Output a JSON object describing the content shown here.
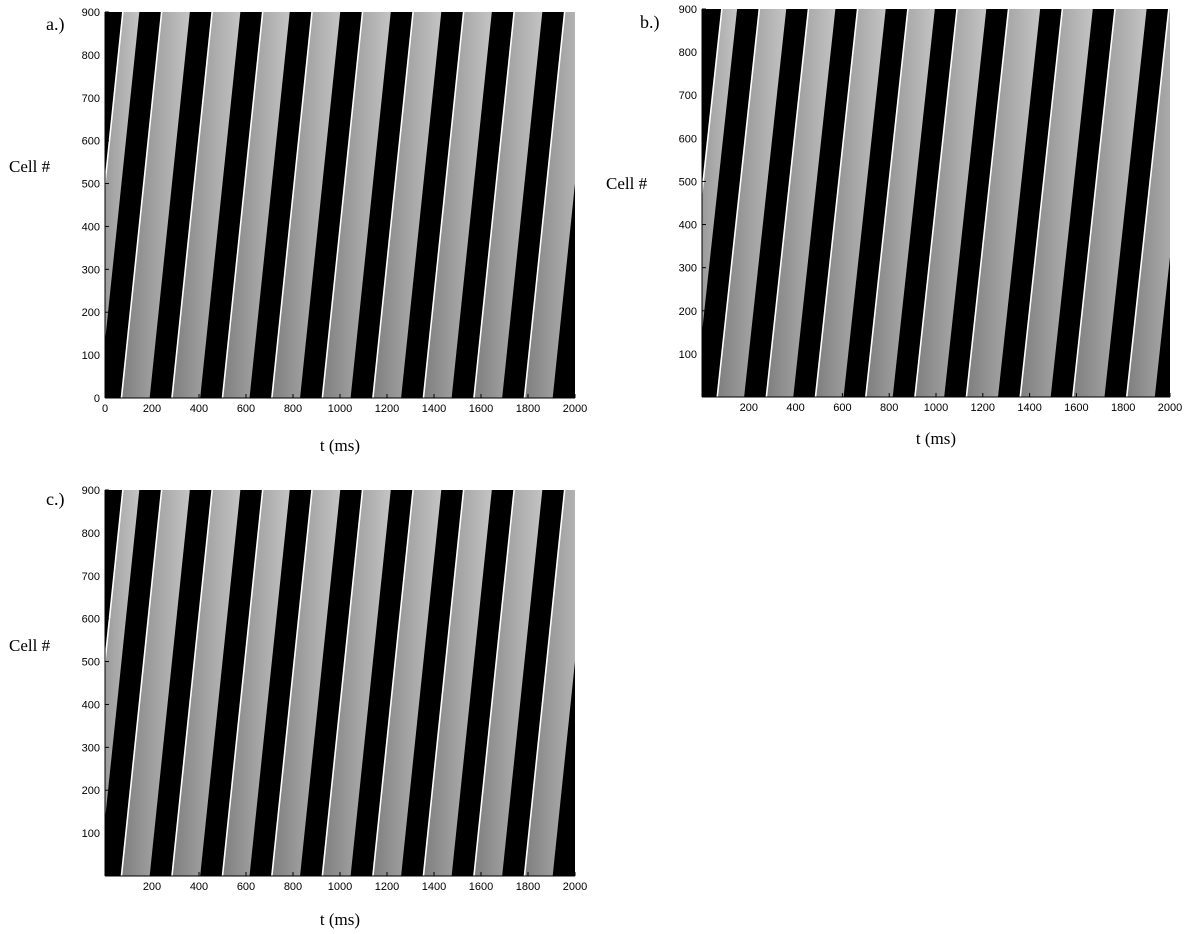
{
  "colors": {
    "background": "#ffffff",
    "band_dark": "#000000",
    "band_gray_leading": "#7e7e7e",
    "band_gray_trailing": "#c4c4c4",
    "front_edge": "#ffffff"
  },
  "chart_data": [
    {
      "id": "a",
      "panel_label": "a.)",
      "type": "heatmap",
      "xlabel": "t (ms)",
      "ylabel": "Cell #",
      "xlim": [
        0,
        2000
      ],
      "ylim": [
        0,
        900
      ],
      "x_ticks": [
        "0",
        "200",
        "400",
        "600",
        "800",
        "1000",
        "1200",
        "1400",
        "1600",
        "1800",
        "2000"
      ],
      "y_ticks": [
        "0",
        "100",
        "200",
        "300",
        "400",
        "500",
        "600",
        "700",
        "800",
        "900"
      ],
      "wave_front_t_at_cell_0": [
        -95,
        70,
        285,
        500,
        710,
        925,
        1140,
        1355,
        1570,
        1785
      ],
      "front_delay_per_cell_ms": 0.19,
      "dark_band_duration_ms": 95
    },
    {
      "id": "b",
      "panel_label": "b.)",
      "type": "heatmap",
      "xlabel": "t (ms)",
      "ylabel": "Cell #",
      "xlim": [
        0,
        2000
      ],
      "ylim": [
        0,
        900
      ],
      "x_ticks": [
        "200",
        "400",
        "600",
        "800",
        "1000",
        "1200",
        "1400",
        "1600",
        "1800",
        "2000"
      ],
      "y_ticks": [
        "100",
        "200",
        "300",
        "400",
        "500",
        "600",
        "700",
        "800",
        "900"
      ],
      "wave_front_t_at_cell_0": [
        -95,
        65,
        275,
        485,
        700,
        910,
        1130,
        1360,
        1585,
        1815
      ],
      "front_delay_per_cell_ms": 0.2,
      "dark_band_duration_ms": 95
    },
    {
      "id": "c",
      "panel_label": "c.)",
      "type": "heatmap",
      "xlabel": "t (ms)",
      "ylabel": "Cell #",
      "xlim": [
        0,
        2000
      ],
      "ylim": [
        0,
        900
      ],
      "x_ticks": [
        "200",
        "400",
        "600",
        "800",
        "1000",
        "1200",
        "1400",
        "1600",
        "1800",
        "2000"
      ],
      "y_ticks": [
        "100",
        "200",
        "300",
        "400",
        "500",
        "600",
        "700",
        "800",
        "900"
      ],
      "wave_front_t_at_cell_0": [
        -95,
        70,
        285,
        500,
        710,
        925,
        1140,
        1355,
        1570,
        1785
      ],
      "front_delay_per_cell_ms": 0.19,
      "dark_band_duration_ms": 95
    }
  ]
}
